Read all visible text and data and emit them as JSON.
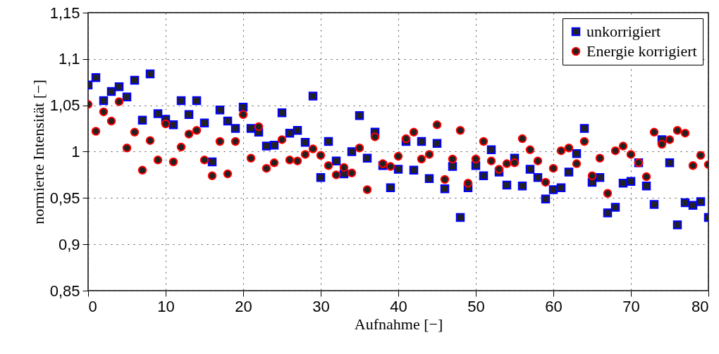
{
  "chart_data": {
    "type": "scatter",
    "xlabel": "Aufnahme [−]",
    "ylabel": "normierte Intensität [−]",
    "x": [
      0,
      1,
      2,
      3,
      4,
      5,
      6,
      7,
      8,
      9,
      10,
      11,
      12,
      13,
      14,
      15,
      16,
      17,
      18,
      19,
      20,
      21,
      22,
      23,
      24,
      25,
      26,
      27,
      28,
      29,
      30,
      31,
      32,
      33,
      34,
      35,
      36,
      37,
      38,
      39,
      40,
      41,
      42,
      43,
      44,
      45,
      46,
      47,
      48,
      49,
      50,
      51,
      52,
      53,
      54,
      55,
      56,
      57,
      58,
      59,
      60,
      61,
      62,
      63,
      64,
      65,
      66,
      67,
      68,
      69,
      70,
      71,
      72,
      73,
      74,
      75,
      76,
      77,
      78,
      79,
      80
    ],
    "series": [
      {
        "name": "unkorrigiert",
        "color": "#0000ff",
        "marker": "square",
        "values": [
          1.072,
          1.08,
          1.055,
          1.065,
          1.07,
          1.059,
          1.077,
          1.034,
          1.084,
          1.041,
          1.035,
          1.029,
          1.055,
          1.04,
          1.055,
          1.031,
          0.989,
          1.045,
          1.033,
          1.025,
          1.048,
          1.025,
          1.021,
          1.006,
          1.007,
          1.042,
          1.02,
          1.023,
          1.01,
          1.06,
          0.972,
          1.011,
          0.99,
          0.976,
          1.0,
          1.039,
          0.993,
          1.021,
          0.985,
          0.961,
          0.981,
          1.011,
          0.98,
          1.011,
          0.971,
          1.009,
          0.96,
          0.984,
          0.929,
          0.961,
          0.985,
          0.974,
          1.002,
          0.978,
          0.964,
          0.993,
          0.963,
          0.981,
          0.972,
          0.949,
          0.959,
          0.961,
          0.978,
          0.998,
          1.025,
          0.967,
          0.972,
          0.934,
          0.94,
          0.966,
          0.968,
          0.988,
          0.963,
          0.943,
          1.013,
          0.988,
          0.921,
          0.945,
          0.942,
          0.946,
          0.929
        ]
      },
      {
        "name": "Energie korrigiert",
        "color": "#ff0000",
        "marker": "circle",
        "values": [
          1.051,
          1.022,
          1.043,
          1.033,
          1.054,
          1.004,
          1.021,
          0.98,
          1.012,
          0.991,
          1.03,
          0.989,
          1.005,
          1.019,
          1.023,
          0.991,
          0.974,
          1.011,
          0.976,
          1.011,
          1.04,
          0.993,
          1.027,
          0.982,
          0.988,
          1.013,
          0.991,
          0.99,
          0.997,
          1.003,
          0.996,
          0.985,
          0.975,
          0.983,
          0.977,
          1.004,
          0.959,
          1.016,
          0.987,
          0.984,
          0.995,
          1.014,
          1.021,
          0.992,
          0.997,
          1.029,
          0.97,
          0.992,
          1.023,
          0.966,
          0.992,
          1.011,
          0.99,
          0.981,
          0.987,
          0.988,
          1.014,
          1.002,
          0.99,
          0.967,
          0.982,
          1.001,
          1.004,
          0.987,
          1.011,
          0.974,
          0.993,
          0.955,
          1.001,
          1.006,
          0.997,
          0.988,
          0.973,
          1.021,
          1.008,
          1.013,
          1.023,
          1.02,
          0.985,
          0.996,
          0.986
        ]
      }
    ],
    "xlim": [
      0,
      80
    ],
    "xticks": [
      0,
      10,
      20,
      30,
      40,
      50,
      60,
      70,
      80
    ],
    "ylim": [
      0.85,
      1.15
    ],
    "yticks": [
      {
        "value": 0.85,
        "label": "0,85"
      },
      {
        "value": 0.9,
        "label": "0,9"
      },
      {
        "value": 0.95,
        "label": "0,95"
      },
      1,
      {
        "value": 1.05,
        "label": "1,05"
      },
      {
        "value": 1.1,
        "label": "1,1"
      },
      {
        "value": 1.15,
        "label": "1,15"
      }
    ],
    "grid": true,
    "legend": "top right"
  }
}
